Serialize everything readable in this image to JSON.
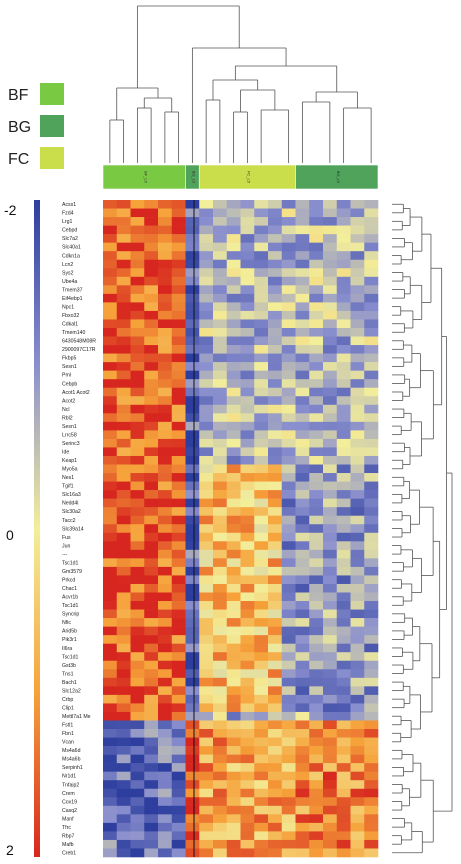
{
  "groups": [
    {
      "name": "BF",
      "color": "#7ac943"
    },
    {
      "name": "BG",
      "color": "#4fa35a"
    },
    {
      "name": "FC",
      "color": "#c9de4a"
    }
  ],
  "colors": {
    "low": "#2d3e9e",
    "mid_low": "#8a8fce",
    "mid": "#f3ee9a",
    "mid_high": "#f6a23a",
    "high": "#d7261f",
    "dendrogram": "#555555",
    "divider": "#111111"
  },
  "chart_data": {
    "type": "heatmap",
    "color_scale": {
      "min": -2,
      "mid": 0,
      "max": 2,
      "tick_labels": [
        "-2",
        "0",
        "2"
      ]
    },
    "columns": {
      "count": 20,
      "groups": [
        {
          "name": "BF",
          "label": "BF_L5",
          "count": 6,
          "color": "#7ac943"
        },
        {
          "name": "BG",
          "label": "BG_L5",
          "count": 1,
          "color": "#4fa35a"
        },
        {
          "name": "FC",
          "label": "FC_L5",
          "count": 7,
          "color": "#c9de4a"
        },
        {
          "name": "BG",
          "label": "BG_L5",
          "count": 6,
          "color": "#4fa35a"
        }
      ]
    },
    "row_labels": [
      "Acss1",
      "Fzd4",
      "Lrg1",
      "Cebpd",
      "Slc7a2",
      "Slc40a1",
      "Cdkn1a",
      "Lcn2",
      "Sys2",
      "Ube4a",
      "Tmem37",
      "Eif4ebp1",
      "Npc1",
      "Fbxo32",
      "Cdkal1",
      "Tmem140",
      "6430548M08R",
      "2900097C17R",
      "Fkbp5",
      "Sesn1",
      "Pml",
      "Cebpb",
      "Acot1 Acot2",
      "Acot2",
      "Ncl",
      "Rbl2",
      "Sesn1",
      "Lrrc58",
      "Serinc3",
      "Ide",
      "Keap1",
      "Myo5a",
      "Nes1",
      "Tgif1",
      "Slc16a3",
      "Nedd4l",
      "Slc30a2",
      "Tacc2",
      "Slc39a14",
      "Fus",
      "Jun",
      "---",
      "Tsc1d1",
      "Gm3579",
      "Prkcd",
      "Chac1",
      "Acvr1b",
      "Tsc1d1",
      "Syncrip",
      "Nfic",
      "Arid5b",
      "Pik3r1",
      "Il6ra",
      "Tsc1d1",
      "Gst3b",
      "Tns1",
      "Bach1",
      "Slc12a2",
      "Crbp",
      "Clip1",
      "Mettl7a1 Me",
      "Fstl1",
      "Fbn1",
      "Vcan",
      "Ms4a6d",
      "Ms4a6b",
      "Serpinh1",
      "Nr1d1",
      "Tnfaip2",
      "Crem",
      "Cox19",
      "Casq2",
      "Manf",
      "Tfrc",
      "Rbp7",
      "Mafb",
      "Creb1"
    ]
  }
}
